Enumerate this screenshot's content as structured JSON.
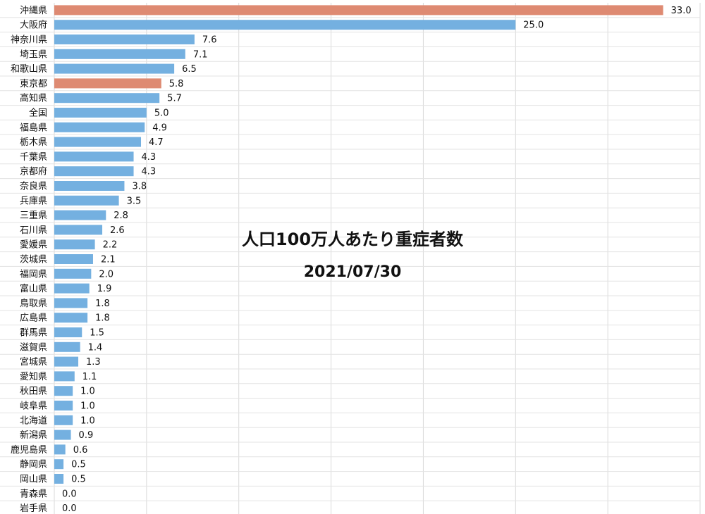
{
  "chart_data": {
    "type": "bar",
    "orientation": "horizontal",
    "title": "人口100万人あたり重症者数",
    "subtitle": "2021/07/30",
    "xlim": [
      0,
      35
    ],
    "grid": true,
    "colors": {
      "default": "#74b0e0",
      "highlight": "#de8a72"
    },
    "highlight": [
      "沖縄県",
      "東京都"
    ],
    "categories": [
      "沖縄県",
      "大阪府",
      "神奈川県",
      "埼玉県",
      "和歌山県",
      "東京都",
      "高知県",
      "全国",
      "福島県",
      "栃木県",
      "千葉県",
      "京都府",
      "奈良県",
      "兵庫県",
      "三重県",
      "石川県",
      "愛媛県",
      "茨城県",
      "福岡県",
      "富山県",
      "鳥取県",
      "広島県",
      "群馬県",
      "滋賀県",
      "宮城県",
      "愛知県",
      "秋田県",
      "岐阜県",
      "北海道",
      "新潟県",
      "鹿児島県",
      "静岡県",
      "岡山県",
      "青森県",
      "岩手県"
    ],
    "values": [
      33.0,
      25.0,
      7.6,
      7.1,
      6.5,
      5.8,
      5.7,
      5.0,
      4.9,
      4.7,
      4.3,
      4.3,
      3.8,
      3.5,
      2.8,
      2.6,
      2.2,
      2.1,
      2.0,
      1.9,
      1.8,
      1.8,
      1.5,
      1.4,
      1.3,
      1.1,
      1.0,
      1.0,
      1.0,
      0.9,
      0.6,
      0.5,
      0.5,
      0.0,
      0.0
    ],
    "value_labels": [
      "33.0",
      "25.0",
      "7.6",
      "7.1",
      "6.5",
      "5.8",
      "5.7",
      "5.0",
      "4.9",
      "4.7",
      "4.3",
      "4.3",
      "3.8",
      "3.5",
      "2.8",
      "2.6",
      "2.2",
      "2.1",
      "2.0",
      "1.9",
      "1.8",
      "1.8",
      "1.5",
      "1.4",
      "1.3",
      "1.1",
      "1.0",
      "1.0",
      "1.0",
      "0.9",
      "0.6",
      "0.5",
      "0.5",
      "0.0",
      "0.0"
    ]
  }
}
